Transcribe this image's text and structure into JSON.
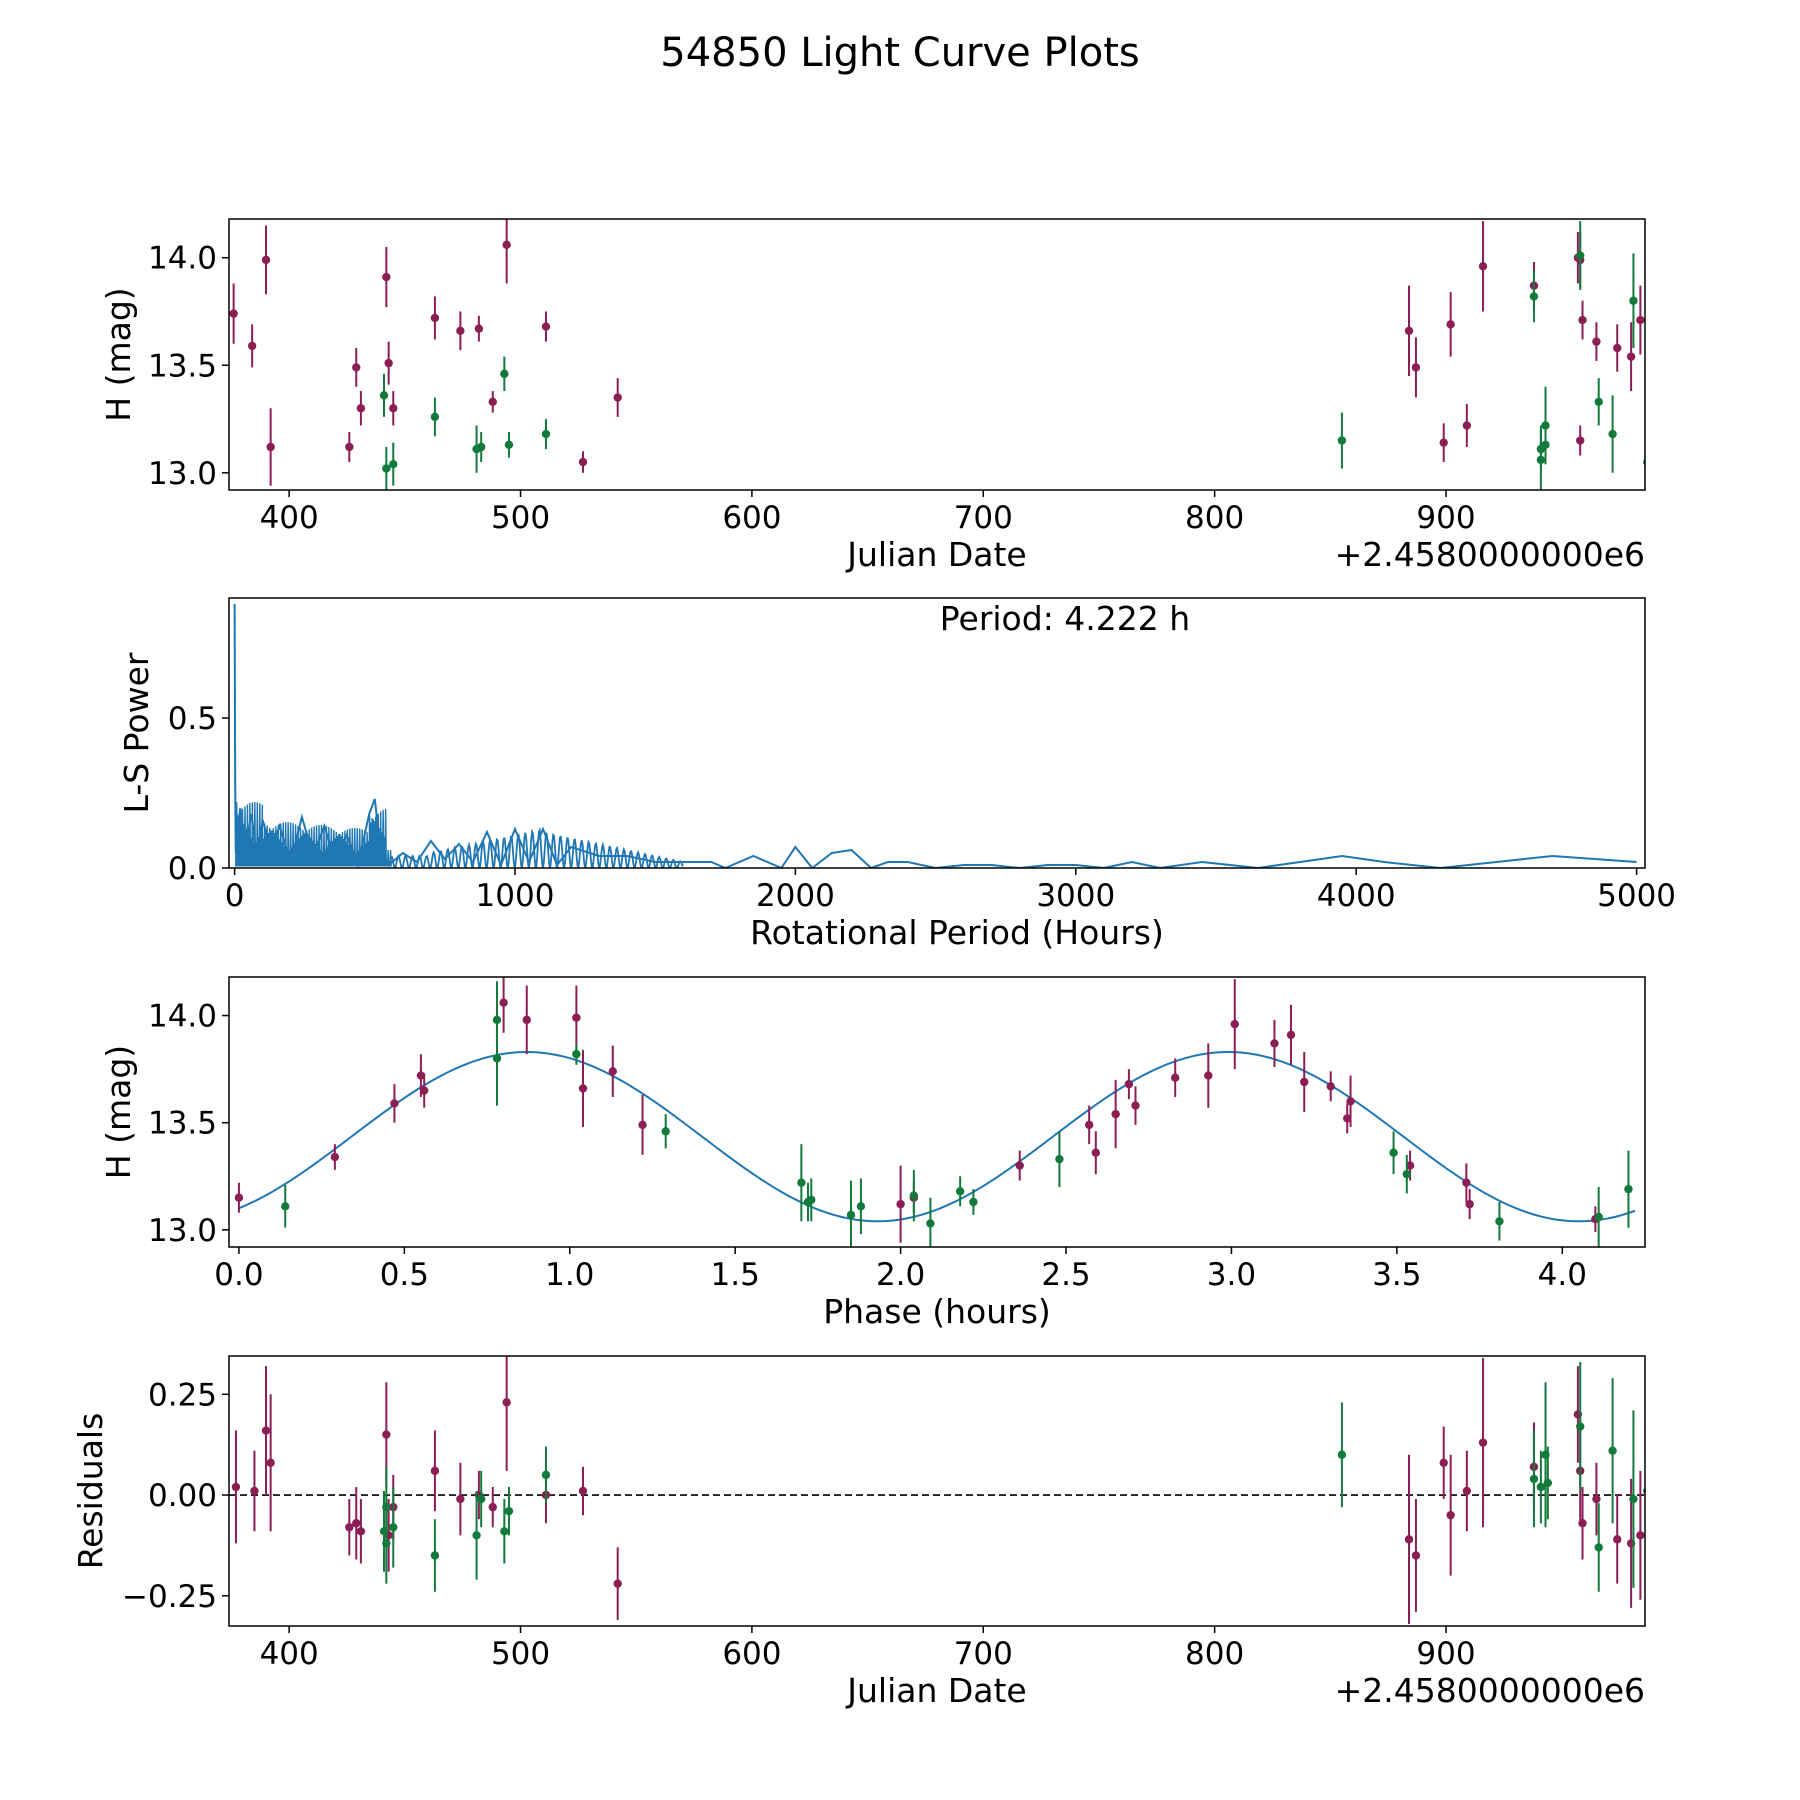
{
  "figure": {
    "title": "54850 Light Curve Plots"
  },
  "colors": {
    "maroon": "#8b1e55",
    "green": "#127a3a",
    "blue": "#1f77b4",
    "black": "#000000"
  },
  "chart_data": [
    {
      "type": "scatter",
      "id": "lightcurve",
      "xlabel": "Julian Date",
      "ylabel": "H (mag)",
      "offset_text": "+2.4580000000e6",
      "xlim": [
        374,
        986
      ],
      "ylim": [
        12.92,
        14.18
      ],
      "xticks": [
        400,
        500,
        600,
        700,
        800,
        900
      ],
      "yticks": [
        13.0,
        13.5,
        14.0
      ],
      "ytick_labels": [
        "13.0",
        "13.5",
        "14.0"
      ],
      "series": [
        {
          "name": "maroon",
          "color": "maroon",
          "points": [
            [
              376,
              13.74,
              0.14
            ],
            [
              384,
              13.59,
              0.1
            ],
            [
              390,
              13.99,
              0.16
            ],
            [
              392,
              13.12,
              0.18
            ],
            [
              426,
              13.12,
              0.07
            ],
            [
              429,
              13.49,
              0.09
            ],
            [
              431,
              13.3,
              0.08
            ],
            [
              442,
              13.91,
              0.14
            ],
            [
              443,
              13.51,
              0.1
            ],
            [
              445,
              13.3,
              0.08
            ],
            [
              463,
              13.72,
              0.1
            ],
            [
              474,
              13.66,
              0.09
            ],
            [
              482,
              13.67,
              0.06
            ],
            [
              488,
              13.33,
              0.05
            ],
            [
              494,
              14.06,
              0.18
            ],
            [
              511,
              13.68,
              0.07
            ],
            [
              527,
              13.05,
              0.05
            ],
            [
              542,
              13.35,
              0.09
            ],
            [
              884,
              13.66,
              0.21
            ],
            [
              887,
              13.49,
              0.14
            ],
            [
              899,
              13.14,
              0.09
            ],
            [
              902,
              13.69,
              0.15
            ],
            [
              909,
              13.22,
              0.1
            ],
            [
              916,
              13.96,
              0.21
            ],
            [
              938,
              13.87,
              0.11
            ],
            [
              957,
              14.0,
              0.12
            ],
            [
              958,
              13.99,
              0.13
            ],
            [
              959,
              13.71,
              0.09
            ],
            [
              958,
              13.15,
              0.07
            ],
            [
              965,
              13.61,
              0.09
            ],
            [
              974,
              13.58,
              0.11
            ],
            [
              980,
              13.54,
              0.16
            ],
            [
              984,
              13.71,
              0.16
            ]
          ]
        },
        {
          "name": "green",
          "color": "green",
          "points": [
            [
              441,
              13.36,
              0.1
            ],
            [
              442,
              13.02,
              0.1
            ],
            [
              445,
              13.04,
              0.1
            ],
            [
              463,
              13.26,
              0.09
            ],
            [
              481,
              13.11,
              0.11
            ],
            [
              483,
              13.12,
              0.07
            ],
            [
              493,
              13.46,
              0.08
            ],
            [
              495,
              13.13,
              0.06
            ],
            [
              511,
              13.18,
              0.07
            ],
            [
              855,
              13.15,
              0.13
            ],
            [
              938,
              13.82,
              0.12
            ],
            [
              941,
              13.11,
              0.09
            ],
            [
              941,
              13.06,
              0.16
            ],
            [
              943,
              13.13,
              0.09
            ],
            [
              943,
              13.22,
              0.18
            ],
            [
              958,
              14.01,
              0.16
            ],
            [
              966,
              13.33,
              0.11
            ],
            [
              972,
              13.18,
              0.18
            ],
            [
              981,
              13.8,
              0.22
            ],
            [
              987,
              13.05,
              0.14
            ]
          ]
        }
      ]
    },
    {
      "type": "line",
      "id": "periodogram",
      "xlabel": "Rotational Period (Hours)",
      "ylabel": "L-S Power",
      "annotation": "Period: 4.222 h",
      "xlim": [
        -20,
        5030
      ],
      "ylim": [
        0,
        0.9
      ],
      "xticks": [
        0,
        1000,
        2000,
        3000,
        4000,
        5000
      ],
      "yticks": [
        0.0,
        0.5
      ],
      "ytick_labels": [
        "0.0",
        "0.5"
      ],
      "series": [
        {
          "name": "L-S periodogram",
          "color": "blue",
          "x": [
            0,
            2,
            4,
            6,
            10,
            20,
            40,
            60,
            80,
            100,
            130,
            160,
            200,
            240,
            280,
            320,
            360,
            400,
            440,
            480,
            500,
            520,
            550,
            600,
            650,
            700,
            750,
            800,
            850,
            900,
            950,
            1000,
            1050,
            1100,
            1150,
            1200,
            1300,
            1400,
            1500,
            1600,
            1700,
            1750,
            1850,
            1950,
            2000,
            2060,
            2130,
            2200,
            2270,
            2330,
            2400,
            2500,
            2600,
            2700,
            2800,
            2900,
            3000,
            3100,
            3200,
            3300,
            3450,
            3550,
            3650,
            3800,
            3950,
            4100,
            4300,
            4500,
            4700,
            4850,
            5000
          ],
          "y": [
            0.88,
            0.3,
            0.05,
            0.22,
            0.1,
            0.2,
            0.07,
            0.18,
            0.03,
            0.16,
            0.06,
            0.14,
            0.02,
            0.17,
            0.04,
            0.14,
            0.02,
            0.11,
            0.01,
            0.18,
            0.23,
            0.06,
            0.01,
            0.05,
            0.02,
            0.09,
            0.03,
            0.08,
            0.02,
            0.12,
            0.01,
            0.13,
            0.02,
            0.13,
            0.01,
            0.07,
            0.04,
            0.04,
            0.02,
            0.02,
            0.02,
            0.0,
            0.04,
            0.0,
            0.07,
            0.0,
            0.05,
            0.06,
            0.0,
            0.02,
            0.02,
            0.0,
            0.01,
            0.01,
            0.0,
            0.01,
            0.01,
            0.0,
            0.02,
            0.0,
            0.02,
            0.01,
            0.0,
            0.02,
            0.04,
            0.02,
            0.0,
            0.02,
            0.04,
            0.03,
            0.02
          ]
        }
      ]
    },
    {
      "type": "scatter",
      "id": "phased",
      "xlabel": "Phase (hours)",
      "ylabel": "H (mag)",
      "xlim": [
        -0.03,
        4.25
      ],
      "ylim": [
        12.92,
        14.18
      ],
      "xticks": [
        0.0,
        0.5,
        1.0,
        1.5,
        2.0,
        2.5,
        3.0,
        3.5,
        4.0
      ],
      "xtick_labels": [
        "0.0",
        "0.5",
        "1.0",
        "1.5",
        "2.0",
        "2.5",
        "3.0",
        "3.5",
        "4.0"
      ],
      "yticks": [
        13.0,
        13.5,
        14.0
      ],
      "ytick_labels": [
        "13.0",
        "13.5",
        "14.0"
      ],
      "model": {
        "mean": 13.435,
        "amplitude": 0.395,
        "period": 2.12,
        "peak_phase": 0.87
      },
      "series": [
        {
          "name": "maroon",
          "color": "maroon",
          "points": [
            [
              0.0,
              13.15,
              0.07
            ],
            [
              0.29,
              13.34,
              0.06
            ],
            [
              0.47,
              13.59,
              0.09
            ],
            [
              0.55,
              13.72,
              0.1
            ],
            [
              0.56,
              13.65,
              0.08
            ],
            [
              0.8,
              14.06,
              0.14
            ],
            [
              0.87,
              13.98,
              0.16
            ],
            [
              1.02,
              13.99,
              0.15
            ],
            [
              1.04,
              13.66,
              0.18
            ],
            [
              1.13,
              13.74,
              0.12
            ],
            [
              1.22,
              13.49,
              0.14
            ],
            [
              2.0,
              13.12,
              0.18
            ],
            [
              2.04,
              13.15,
              0.07
            ],
            [
              2.36,
              13.3,
              0.07
            ],
            [
              2.57,
              13.49,
              0.09
            ],
            [
              2.59,
              13.36,
              0.1
            ],
            [
              2.65,
              13.54,
              0.16
            ],
            [
              2.69,
              13.68,
              0.07
            ],
            [
              2.71,
              13.58,
              0.09
            ],
            [
              2.83,
              13.71,
              0.09
            ],
            [
              2.93,
              13.72,
              0.15
            ],
            [
              3.01,
              13.96,
              0.21
            ],
            [
              3.13,
              13.87,
              0.11
            ],
            [
              3.18,
              13.91,
              0.14
            ],
            [
              3.22,
              13.69,
              0.14
            ],
            [
              3.3,
              13.67,
              0.07
            ],
            [
              3.35,
              13.52,
              0.07
            ],
            [
              3.36,
              13.6,
              0.12
            ],
            [
              3.54,
              13.3,
              0.07
            ],
            [
              3.71,
              13.22,
              0.09
            ],
            [
              3.72,
              13.12,
              0.07
            ],
            [
              4.1,
              13.05,
              0.06
            ]
          ]
        },
        {
          "name": "green",
          "color": "green",
          "points": [
            [
              0.14,
              13.11,
              0.1
            ],
            [
              0.78,
              13.98,
              0.18
            ],
            [
              0.78,
              13.8,
              0.22
            ],
            [
              1.02,
              13.82,
              0.05
            ],
            [
              1.29,
              13.46,
              0.08
            ],
            [
              1.7,
              13.22,
              0.18
            ],
            [
              1.72,
              13.13,
              0.09
            ],
            [
              1.73,
              13.14,
              0.1
            ],
            [
              1.85,
              13.07,
              0.16
            ],
            [
              1.88,
              13.11,
              0.13
            ],
            [
              2.04,
              13.16,
              0.12
            ],
            [
              2.09,
              13.03,
              0.12
            ],
            [
              2.18,
              13.18,
              0.07
            ],
            [
              2.22,
              13.13,
              0.06
            ],
            [
              2.48,
              13.33,
              0.13
            ],
            [
              3.49,
              13.36,
              0.1
            ],
            [
              3.53,
              13.26,
              0.09
            ],
            [
              3.81,
              13.04,
              0.09
            ],
            [
              4.11,
              13.06,
              0.14
            ],
            [
              4.2,
              13.19,
              0.18
            ]
          ]
        }
      ]
    },
    {
      "type": "scatter",
      "id": "residuals",
      "xlabel": "Julian Date",
      "ylabel": "Residuals",
      "offset_text": "+2.4580000000e6",
      "xlim": [
        374,
        986
      ],
      "ylim": [
        -0.325,
        0.345
      ],
      "xticks": [
        400,
        500,
        600,
        700,
        800,
        900
      ],
      "yticks": [
        0.25,
        0.0,
        -0.25
      ],
      "ytick_labels": [
        "0.25",
        "0.00",
        "−0.25"
      ],
      "zero_line": true,
      "series": [
        {
          "name": "maroon",
          "color": "maroon",
          "points": [
            [
              377,
              0.02,
              0.14
            ],
            [
              385,
              0.01,
              0.1
            ],
            [
              390,
              0.16,
              0.16
            ],
            [
              392,
              0.08,
              0.17
            ],
            [
              426,
              -0.08,
              0.07
            ],
            [
              429,
              -0.07,
              0.09
            ],
            [
              431,
              -0.09,
              0.08
            ],
            [
              442,
              0.15,
              0.13
            ],
            [
              443,
              -0.1,
              0.09
            ],
            [
              445,
              -0.03,
              0.08
            ],
            [
              463,
              0.06,
              0.1
            ],
            [
              474,
              -0.01,
              0.09
            ],
            [
              482,
              0.0,
              0.06
            ],
            [
              488,
              -0.03,
              0.05
            ],
            [
              494,
              0.23,
              0.17
            ],
            [
              511,
              0.0,
              0.07
            ],
            [
              527,
              0.01,
              0.06
            ],
            [
              542,
              -0.22,
              0.09
            ],
            [
              884,
              -0.11,
              0.21
            ],
            [
              887,
              -0.15,
              0.14
            ],
            [
              899,
              0.08,
              0.09
            ],
            [
              902,
              -0.05,
              0.15
            ],
            [
              909,
              0.01,
              0.1
            ],
            [
              916,
              0.13,
              0.21
            ],
            [
              938,
              0.07,
              0.11
            ],
            [
              957,
              0.2,
              0.12
            ],
            [
              958,
              0.06,
              0.13
            ],
            [
              959,
              -0.07,
              0.09
            ],
            [
              965,
              -0.01,
              0.09
            ],
            [
              974,
              -0.11,
              0.11
            ],
            [
              980,
              -0.12,
              0.16
            ],
            [
              984,
              -0.1,
              0.16
            ]
          ]
        },
        {
          "name": "green",
          "color": "green",
          "points": [
            [
              441,
              -0.09,
              0.1
            ],
            [
              442,
              -0.03,
              0.1
            ],
            [
              442,
              -0.12,
              0.1
            ],
            [
              445,
              -0.08,
              0.1
            ],
            [
              463,
              -0.15,
              0.09
            ],
            [
              481,
              -0.1,
              0.11
            ],
            [
              483,
              -0.01,
              0.07
            ],
            [
              493,
              -0.09,
              0.08
            ],
            [
              495,
              -0.04,
              0.06
            ],
            [
              511,
              0.05,
              0.07
            ],
            [
              855,
              0.1,
              0.13
            ],
            [
              938,
              0.04,
              0.12
            ],
            [
              941,
              0.02,
              0.09
            ],
            [
              943,
              0.1,
              0.18
            ],
            [
              944,
              0.03,
              0.09
            ],
            [
              958,
              0.17,
              0.16
            ],
            [
              966,
              -0.13,
              0.11
            ],
            [
              972,
              0.11,
              0.18
            ],
            [
              981,
              -0.01,
              0.22
            ],
            [
              987,
              0.01,
              0.14
            ]
          ]
        }
      ]
    }
  ]
}
